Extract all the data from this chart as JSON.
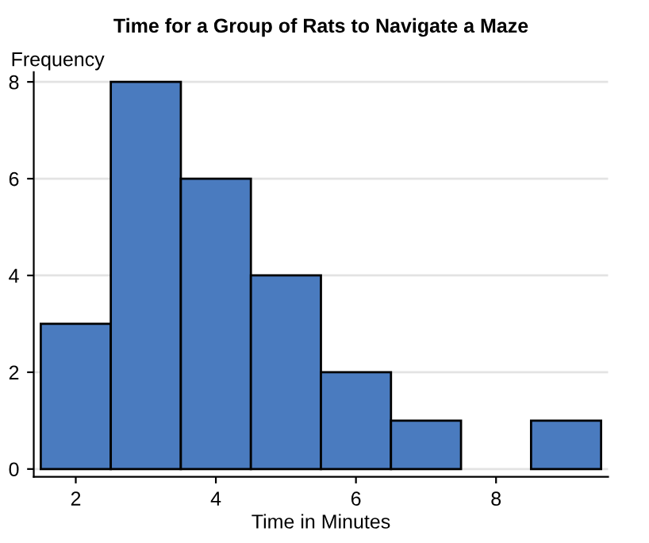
{
  "chart_data": {
    "type": "histogram",
    "title": "Time for a Group of Rats to Navigate a Maze",
    "xlabel": "Time in Minutes",
    "ylabel": "Frequency",
    "bins": [
      1.5,
      2.5,
      3.5,
      4.5,
      5.5,
      6.5,
      7.5,
      8.5,
      9.5
    ],
    "values": [
      3,
      8,
      6,
      4,
      2,
      1,
      0,
      1
    ],
    "color": "#4a7bbf",
    "xlim": [
      1.4,
      9.6
    ],
    "xticks": [
      2,
      4,
      6,
      8
    ],
    "ylim": [
      -0.16,
      8.2
    ],
    "yticks": [
      0,
      2,
      4,
      6,
      8
    ],
    "grid": "y"
  }
}
